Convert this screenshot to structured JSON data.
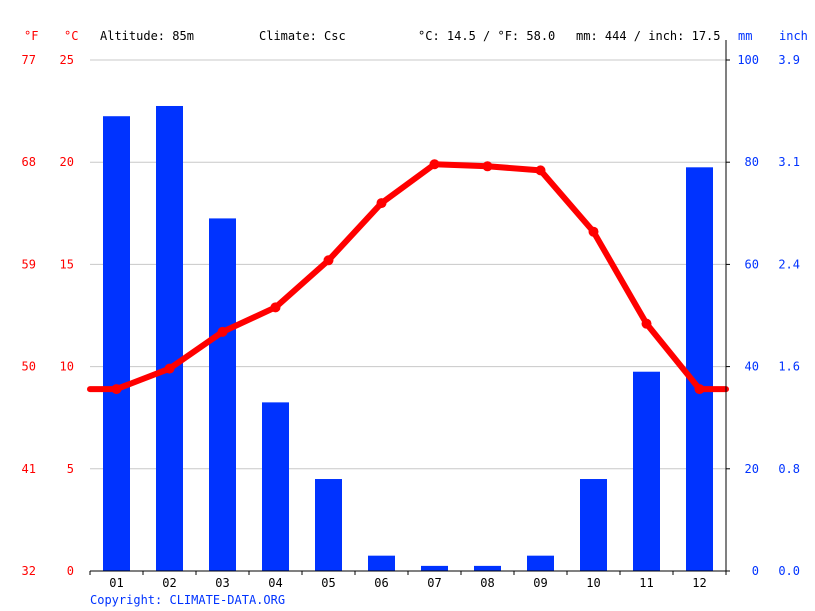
{
  "header": {
    "unit_f": "°F",
    "unit_c": "°C",
    "altitude": "Altitude: 85m",
    "climate": "Climate: Csc",
    "temp_avg": "°C: 14.5 / °F: 58.0",
    "precip_total": "mm: 444 / inch: 17.5",
    "unit_mm": "mm",
    "unit_inch": "inch"
  },
  "copyright": "Copyright: CLIMATE-DATA.ORG",
  "colors": {
    "temperature": "#ff0000",
    "precipitation": "#0033ff",
    "grid": "#c8c8c8"
  },
  "chart_data": {
    "type": "bar",
    "categories": [
      "01",
      "02",
      "03",
      "04",
      "05",
      "06",
      "07",
      "08",
      "09",
      "10",
      "11",
      "12"
    ],
    "series": [
      {
        "type": "bar",
        "axis": "right",
        "unit": "mm",
        "values": [
          89,
          91,
          69,
          33,
          18,
          3,
          1,
          1,
          3,
          18,
          39,
          79
        ]
      },
      {
        "type": "line",
        "axis": "left",
        "unit": "°C",
        "values": [
          8.9,
          9.9,
          11.7,
          12.9,
          15.2,
          18.0,
          19.9,
          19.8,
          19.6,
          16.6,
          12.1,
          8.9
        ]
      }
    ],
    "axes": {
      "celsius": {
        "ticks": [
          0,
          5,
          10,
          15,
          20,
          25
        ],
        "range": [
          0,
          25
        ]
      },
      "fahrenheit": {
        "ticks": [
          "32",
          "41",
          "50",
          "59",
          "68",
          "77"
        ]
      },
      "mm": {
        "ticks": [
          0,
          20,
          40,
          60,
          80,
          100
        ],
        "range": [
          0,
          100
        ]
      },
      "inch": {
        "ticks": [
          "0.0",
          "0.8",
          "1.6",
          "2.4",
          "3.1",
          "3.9"
        ]
      }
    },
    "grid": true
  }
}
